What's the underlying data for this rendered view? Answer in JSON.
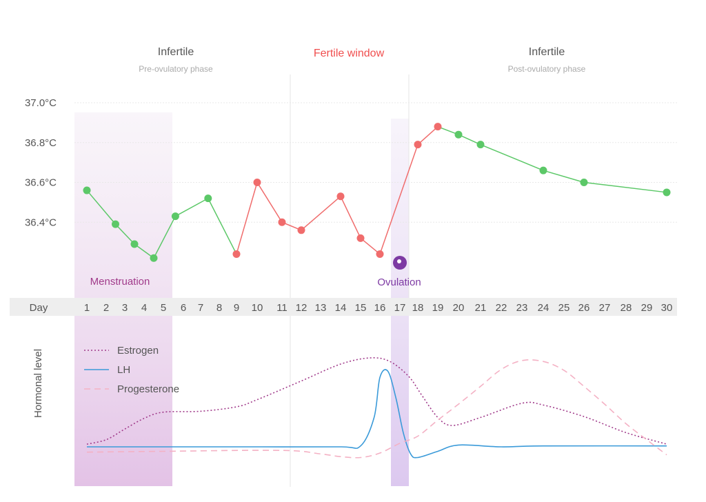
{
  "chart_data": {
    "type": "line",
    "phases": [
      {
        "title": "Infertile",
        "subtitle": "Pre-ovulatory phase",
        "color": "#666666"
      },
      {
        "title": "Fertile window",
        "subtitle": "",
        "color": "#f04e4e"
      },
      {
        "title": "Infertile",
        "subtitle": "Post-ovulatory phase",
        "color": "#666666"
      }
    ],
    "temperature": {
      "y_ticks": [
        "37.0°C",
        "36.8°C",
        "36.6°C",
        "36.4°C"
      ],
      "y_tick_values": [
        37.0,
        36.8,
        36.6,
        36.4
      ],
      "ylim": [
        36.12,
        37.0
      ],
      "points": [
        {
          "day": 1,
          "temp": 36.56,
          "fertile": false
        },
        {
          "day": 2.5,
          "temp": 36.39,
          "fertile": false
        },
        {
          "day": 3.5,
          "temp": 36.29,
          "fertile": false
        },
        {
          "day": 4.5,
          "temp": 36.22,
          "fertile": false
        },
        {
          "day": 5.6,
          "temp": 36.43,
          "fertile": false
        },
        {
          "day": 7.4,
          "temp": 36.52,
          "fertile": false
        },
        {
          "day": 9,
          "temp": 36.24,
          "fertile": true
        },
        {
          "day": 10,
          "temp": 36.6,
          "fertile": true
        },
        {
          "day": 11,
          "temp": 36.4,
          "fertile": true
        },
        {
          "day": 12,
          "temp": 36.36,
          "fertile": true
        },
        {
          "day": 14,
          "temp": 36.53,
          "fertile": true
        },
        {
          "day": 15,
          "temp": 36.32,
          "fertile": true
        },
        {
          "day": 16,
          "temp": 36.24,
          "fertile": true
        },
        {
          "day": 18,
          "temp": 36.79,
          "fertile": true
        },
        {
          "day": 19,
          "temp": 36.88,
          "fertile": true
        },
        {
          "day": 20,
          "temp": 36.84,
          "fertile": false
        },
        {
          "day": 21,
          "temp": 36.79,
          "fertile": false
        },
        {
          "day": 24,
          "temp": 36.66,
          "fertile": false
        },
        {
          "day": 26,
          "temp": 36.6,
          "fertile": false
        },
        {
          "day": 30,
          "temp": 36.55,
          "fertile": false
        }
      ]
    },
    "days_label": "Day",
    "days": [
      1,
      2,
      3,
      4,
      5,
      6,
      7,
      8,
      9,
      10,
      11,
      12,
      13,
      14,
      15,
      16,
      17,
      18,
      19,
      20,
      21,
      22,
      23,
      24,
      25,
      26,
      27,
      28,
      29,
      30
    ],
    "menstruation": {
      "label": "Menstruation",
      "days": [
        1,
        5
      ]
    },
    "ovulation": {
      "label": "Ovulation",
      "day": 17
    },
    "hormones": {
      "ylabel": "Hormonal level",
      "series": [
        {
          "name": "Estrogen",
          "color": "#a03a8a",
          "style": "dotted",
          "points": [
            [
              1,
              0.03
            ],
            [
              2,
              0.08
            ],
            [
              3,
              0.2
            ],
            [
              4,
              0.32
            ],
            [
              5,
              0.39
            ],
            [
              7,
              0.4
            ],
            [
              9,
              0.45
            ],
            [
              10,
              0.53
            ],
            [
              12,
              0.74
            ],
            [
              14,
              0.93
            ],
            [
              15.5,
              1.0
            ],
            [
              16.5,
              0.96
            ],
            [
              17.5,
              0.79
            ],
            [
              18.2,
              0.58
            ],
            [
              19,
              0.33
            ],
            [
              19.7,
              0.24
            ],
            [
              21,
              0.33
            ],
            [
              23,
              0.49
            ],
            [
              24,
              0.47
            ],
            [
              26,
              0.34
            ],
            [
              28,
              0.16
            ],
            [
              30,
              0.03
            ]
          ]
        },
        {
          "name": "LH",
          "color": "#3a9ad9",
          "style": "solid",
          "points": [
            [
              1,
              0.0
            ],
            [
              5,
              0.0
            ],
            [
              10,
              0.0
            ],
            [
              14,
              0.0
            ],
            [
              15,
              0.01
            ],
            [
              15.7,
              0.33
            ],
            [
              16,
              0.78
            ],
            [
              16.4,
              0.85
            ],
            [
              16.8,
              0.55
            ],
            [
              17.2,
              0.15
            ],
            [
              17.6,
              -0.08
            ],
            [
              18,
              -0.12
            ],
            [
              19,
              -0.05
            ],
            [
              20,
              0.02
            ],
            [
              22,
              0.0
            ],
            [
              24,
              0.01
            ],
            [
              30,
              0.01
            ]
          ]
        },
        {
          "name": "Progesterone",
          "color": "#f4b1c4",
          "style": "dashed",
          "points": [
            [
              1,
              -0.06
            ],
            [
              5,
              -0.05
            ],
            [
              11,
              -0.04
            ],
            [
              13,
              -0.08
            ],
            [
              14,
              -0.11
            ],
            [
              15,
              -0.12
            ],
            [
              16,
              -0.07
            ],
            [
              17,
              0.04
            ],
            [
              18,
              0.12
            ],
            [
              19,
              0.3
            ],
            [
              20,
              0.48
            ],
            [
              21,
              0.68
            ],
            [
              22,
              0.87
            ],
            [
              23,
              0.97
            ],
            [
              24,
              0.96
            ],
            [
              25,
              0.86
            ],
            [
              26,
              0.68
            ],
            [
              27,
              0.48
            ],
            [
              28,
              0.26
            ],
            [
              29,
              0.08
            ],
            [
              30,
              -0.09
            ]
          ]
        }
      ]
    },
    "colors": {
      "fertile": "#f06c6c",
      "infertile": "#5cc868",
      "ovulation": "#7d3aa3",
      "menstruation_text": "#a03a8a",
      "ovulation_text": "#7d3aa3"
    }
  }
}
